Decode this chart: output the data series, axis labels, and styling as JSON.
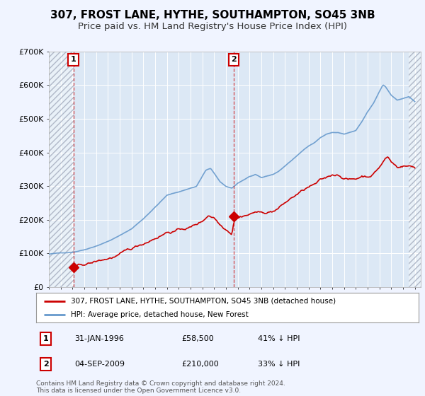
{
  "title": "307, FROST LANE, HYTHE, SOUTHAMPTON, SO45 3NB",
  "subtitle": "Price paid vs. HM Land Registry's House Price Index (HPI)",
  "title_fontsize": 11,
  "subtitle_fontsize": 9.5,
  "background_color": "#f0f4ff",
  "plot_bg_color": "#dce8f5",
  "legend_line1": "307, FROST LANE, HYTHE, SOUTHAMPTON, SO45 3NB (detached house)",
  "legend_line2": "HPI: Average price, detached house, New Forest",
  "footnote": "Contains HM Land Registry data © Crown copyright and database right 2024.\nThis data is licensed under the Open Government Licence v3.0.",
  "marker1_label": "1",
  "marker1_date": "31-JAN-1996",
  "marker1_price": "£58,500",
  "marker1_hpi": "41% ↓ HPI",
  "marker1_x": 1996.08,
  "marker1_y": 58500,
  "marker2_label": "2",
  "marker2_date": "04-SEP-2009",
  "marker2_price": "£210,000",
  "marker2_hpi": "33% ↓ HPI",
  "marker2_x": 2009.67,
  "marker2_y": 210000,
  "xlim_left": 1994.0,
  "xlim_right": 2025.5,
  "hatch_left_end": 1996.08,
  "hatch_right_start": 2024.5,
  "ylim": [
    0,
    700000
  ],
  "yticks": [
    0,
    100000,
    200000,
    300000,
    400000,
    500000,
    600000,
    700000
  ],
  "ytick_labels": [
    "£0",
    "£100K",
    "£200K",
    "£300K",
    "£400K",
    "£500K",
    "£600K",
    "£700K"
  ],
  "red_color": "#cc0000",
  "blue_color": "#6699cc",
  "grid_color": "#ffffff"
}
